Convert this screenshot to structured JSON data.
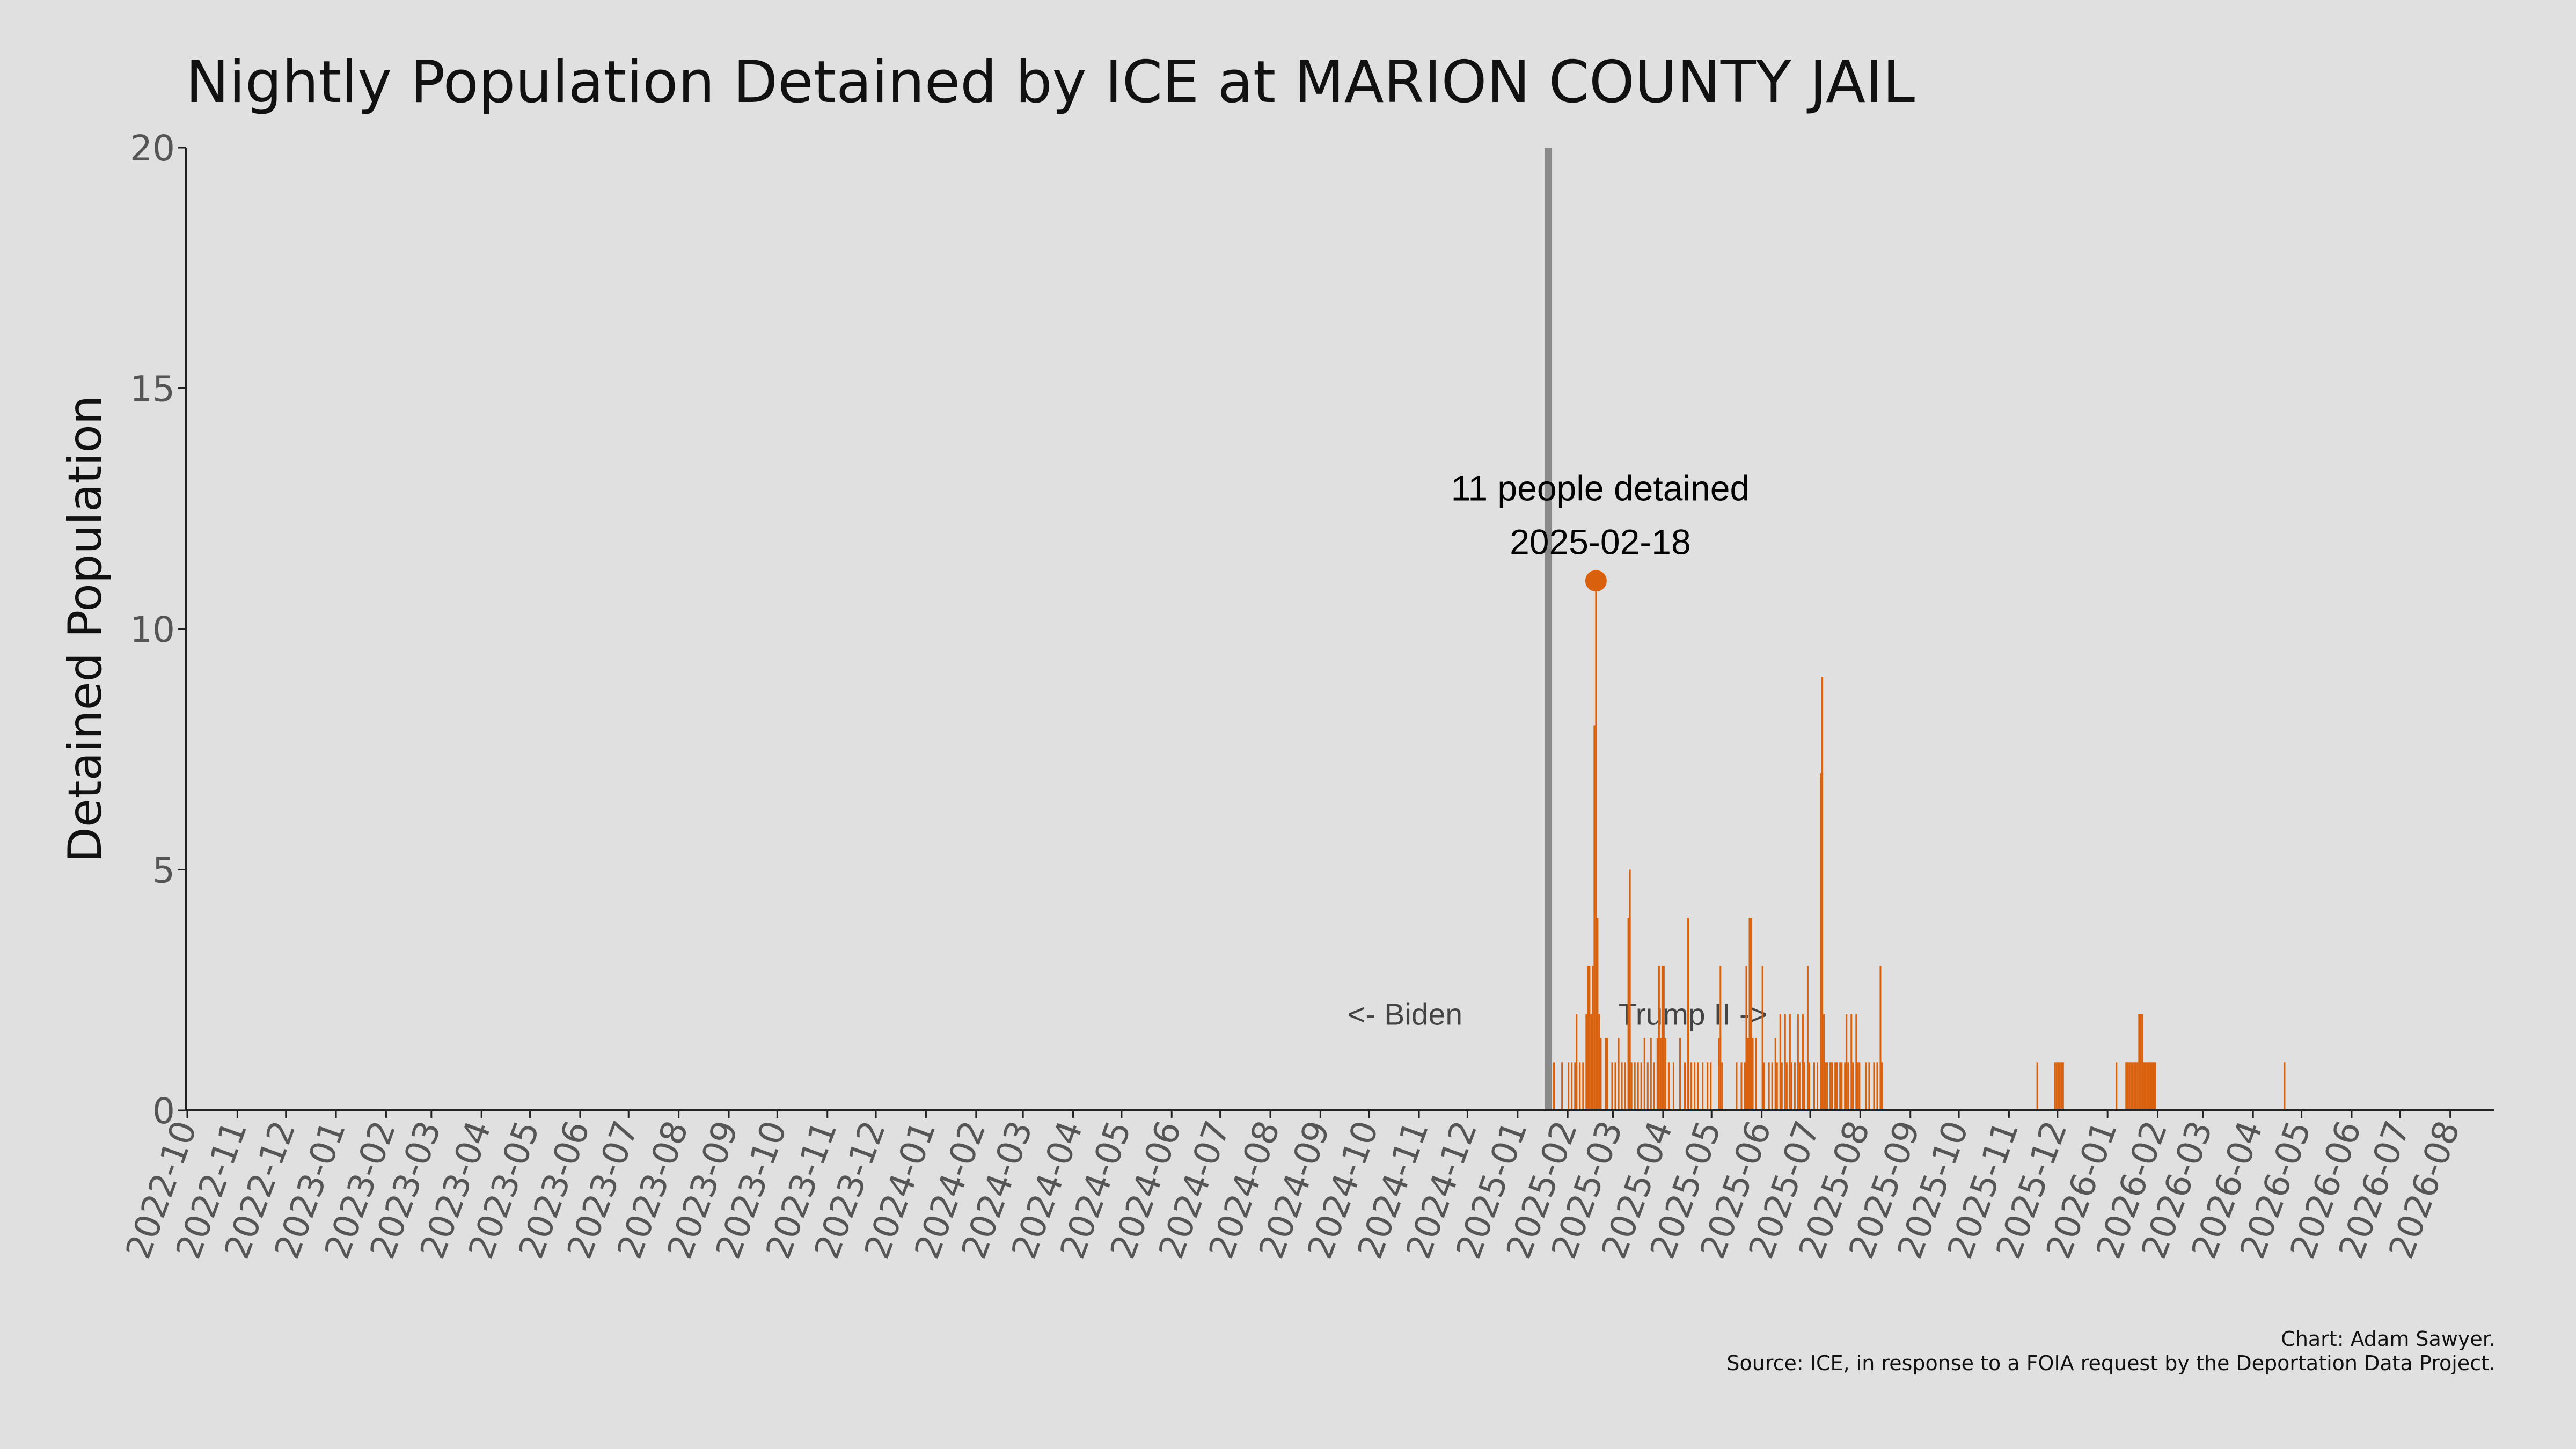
{
  "chart_data": {
    "type": "bar",
    "title": "Nightly Population Detained by ICE at MARION COUNTY JAIL",
    "y_label": "Detained Population",
    "color": "#d9600c",
    "x": [
      "2025-01-23",
      "2025-01-28",
      "2025-02-01",
      "2025-02-03",
      "2025-02-05",
      "2025-02-06",
      "2025-02-08",
      "2025-02-10",
      "2025-02-12",
      "2025-02-13",
      "2025-02-14",
      "2025-02-15",
      "2025-02-16",
      "2025-02-17",
      "2025-02-18",
      "2025-02-19",
      "2025-02-20",
      "2025-02-21",
      "2025-02-24",
      "2025-02-25",
      "2025-02-28",
      "2025-03-02",
      "2025-03-04",
      "2025-03-06",
      "2025-03-08",
      "2025-03-10",
      "2025-03-11",
      "2025-03-12",
      "2025-03-14",
      "2025-03-16",
      "2025-03-18",
      "2025-03-20",
      "2025-03-22",
      "2025-03-24",
      "2025-03-26",
      "2025-03-28",
      "2025-03-29",
      "2025-03-30",
      "2025-03-31",
      "2025-04-01",
      "2025-04-02",
      "2025-04-04",
      "2025-04-07",
      "2025-04-11",
      "2025-04-14",
      "2025-04-16",
      "2025-04-18",
      "2025-04-20",
      "2025-04-22",
      "2025-04-25",
      "2025-04-28",
      "2025-04-30",
      "2025-05-05",
      "2025-05-06",
      "2025-05-07",
      "2025-05-16",
      "2025-05-19",
      "2025-05-21",
      "2025-05-22",
      "2025-05-23",
      "2025-05-24",
      "2025-05-25",
      "2025-05-26",
      "2025-05-28",
      "2025-06-01",
      "2025-06-02",
      "2025-06-05",
      "2025-06-07",
      "2025-06-09",
      "2025-06-10",
      "2025-06-12",
      "2025-06-13",
      "2025-06-15",
      "2025-06-16",
      "2025-06-18",
      "2025-06-19",
      "2025-06-21",
      "2025-06-23",
      "2025-06-24",
      "2025-06-26",
      "2025-06-27",
      "2025-06-29",
      "2025-06-30",
      "2025-07-03",
      "2025-07-05",
      "2025-07-07",
      "2025-07-08",
      "2025-07-09",
      "2025-07-10",
      "2025-07-11",
      "2025-07-13",
      "2025-07-14",
      "2025-07-16",
      "2025-07-17",
      "2025-07-19",
      "2025-07-20",
      "2025-07-22",
      "2025-07-23",
      "2025-07-24",
      "2025-07-26",
      "2025-07-27",
      "2025-07-29",
      "2025-07-30",
      "2025-07-31",
      "2025-08-04",
      "2025-08-06",
      "2025-08-09",
      "2025-08-11",
      "2025-08-13",
      "2025-08-14",
      "2025-11-18",
      "2025-11-29",
      "2025-11-30",
      "2025-12-01",
      "2025-12-02",
      "2025-12-03",
      "2025-12-04",
      "2026-01-06",
      "2026-01-12",
      "2026-01-13",
      "2026-01-14",
      "2026-01-15",
      "2026-01-16",
      "2026-01-17",
      "2026-01-18",
      "2026-01-19",
      "2026-01-20",
      "2026-01-21",
      "2026-01-22",
      "2026-01-23",
      "2026-01-24",
      "2026-01-25",
      "2026-01-26",
      "2026-01-27",
      "2026-01-28",
      "2026-01-29",
      "2026-01-30",
      "2026-04-20"
    ],
    "values": [
      1,
      1,
      1,
      1,
      1,
      2,
      1,
      1,
      2,
      3,
      3,
      2,
      3,
      8,
      11,
      4,
      2,
      1.5,
      1.5,
      1.5,
      1,
      1,
      1.5,
      1,
      1,
      4,
      5,
      1,
      1,
      1,
      1,
      1.5,
      1,
      1.5,
      1,
      1.5,
      3,
      1.5,
      3,
      3,
      1.5,
      1,
      1,
      1.5,
      1,
      4,
      1,
      1,
      1,
      1,
      1,
      1,
      1.5,
      3,
      1,
      1,
      1,
      1,
      3,
      1.5,
      4,
      4,
      1.5,
      1.5,
      3,
      1,
      1,
      1,
      1.5,
      1,
      2,
      1,
      2,
      1,
      2,
      1,
      1,
      2,
      1,
      2,
      1,
      3,
      1,
      1,
      1,
      7,
      9,
      2,
      1,
      1,
      1,
      1,
      1,
      1,
      1,
      1,
      1,
      2,
      1,
      2,
      1,
      2,
      1,
      1,
      1,
      1,
      1,
      1,
      3,
      1,
      1,
      1,
      1,
      1,
      1,
      1,
      1,
      1,
      1,
      1,
      1,
      1,
      1,
      1,
      1,
      1,
      2,
      2,
      2,
      1,
      1,
      1,
      1,
      1,
      1,
      1,
      1,
      1
    ],
    "highlight": {
      "label": "11 people detained",
      "x": "2025-02-18",
      "value": 11
    },
    "divider_x": "2025-01-20",
    "region_labels": [
      "<- Biden",
      "Trump II ->"
    ],
    "credit": "Chart: Adam Sawyer.",
    "source": "Source: ICE, in response to a FOIA request by the Deportation Data Project.",
    "xlim": [
      "2022-09-30",
      "2026-08-28"
    ],
    "xticks": [
      "2022-10",
      "2022-11",
      "2022-12",
      "2023-01",
      "2023-02",
      "2023-03",
      "2023-04",
      "2023-05",
      "2023-06",
      "2023-07",
      "2023-08",
      "2023-09",
      "2023-10",
      "2023-11",
      "2023-12",
      "2024-01",
      "2024-02",
      "2024-03",
      "2024-04",
      "2024-05",
      "2024-06",
      "2024-07",
      "2024-08",
      "2024-09",
      "2024-10",
      "2024-11",
      "2024-12",
      "2025-01",
      "2025-02",
      "2025-03",
      "2025-04",
      "2025-05",
      "2025-06",
      "2025-07",
      "2025-08",
      "2025-09",
      "2025-10",
      "2025-11",
      "2025-12",
      "2026-01",
      "2026-02",
      "2026-03",
      "2026-04",
      "2026-05",
      "2026-06",
      "2026-07",
      "2026-08"
    ],
    "ylim": [
      0,
      20
    ],
    "yticks": [
      0,
      5,
      10,
      15,
      20
    ],
    "grid": false
  }
}
